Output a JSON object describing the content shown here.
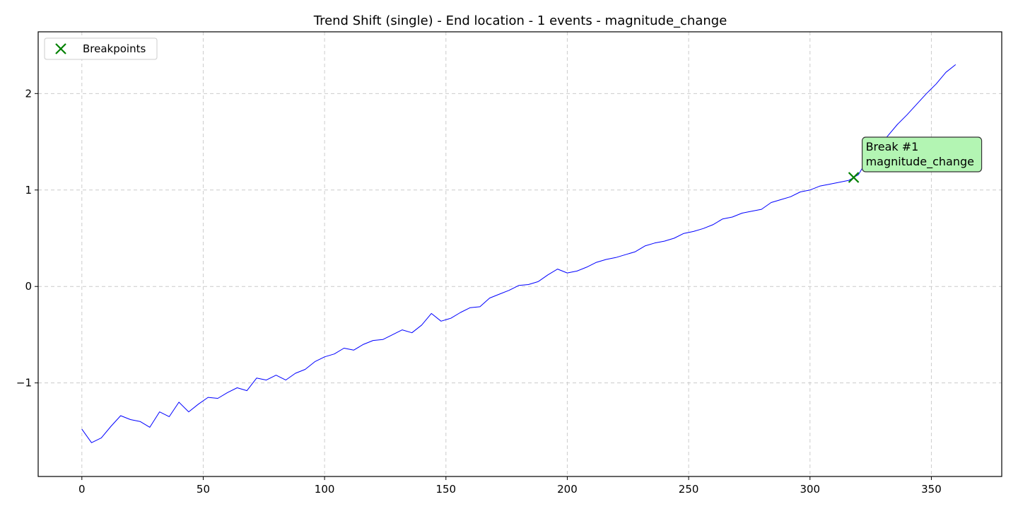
{
  "chart_data": {
    "type": "line",
    "title": "Trend Shift (single) - End location - 1 events - magnitude_change",
    "xlabel": "",
    "ylabel": "",
    "xlim": [
      -18,
      379
    ],
    "ylim": [
      -1.97,
      2.64
    ],
    "x_ticks": [
      0,
      50,
      100,
      150,
      200,
      250,
      300,
      350
    ],
    "y_ticks": [
      -1,
      0,
      1,
      2
    ],
    "grid": true,
    "legend": {
      "placement": "top-left",
      "entries": [
        {
          "label": "Breakpoints",
          "marker": "x",
          "color": "#008000"
        }
      ]
    },
    "series": [
      {
        "color": "#0000ff",
        "x": [
          0,
          4,
          8,
          12,
          16,
          20,
          24,
          28,
          32,
          36,
          40,
          44,
          48,
          52,
          56,
          60,
          64,
          68,
          72,
          76,
          80,
          84,
          88,
          92,
          96,
          100,
          104,
          108,
          112,
          116,
          120,
          124,
          128,
          132,
          136,
          140,
          144,
          148,
          152,
          156,
          160,
          164,
          168,
          172,
          176,
          180,
          184,
          188,
          192,
          196,
          200,
          204,
          208,
          212,
          216,
          220,
          224,
          228,
          232,
          236,
          240,
          244,
          248,
          252,
          256,
          260,
          264,
          268,
          272,
          276,
          280,
          284,
          288,
          292,
          296,
          300,
          304,
          308,
          312,
          316,
          318,
          320,
          324,
          328,
          332,
          336,
          340,
          344,
          348,
          352,
          356,
          360
        ],
        "y": [
          -1.48,
          -1.62,
          -1.57,
          -1.45,
          -1.34,
          -1.38,
          -1.4,
          -1.46,
          -1.3,
          -1.35,
          -1.2,
          -1.3,
          -1.22,
          -1.15,
          -1.16,
          -1.1,
          -1.05,
          -1.08,
          -0.95,
          -0.97,
          -0.92,
          -0.97,
          -0.9,
          -0.86,
          -0.78,
          -0.73,
          -0.7,
          -0.64,
          -0.66,
          -0.6,
          -0.56,
          -0.55,
          -0.5,
          -0.45,
          -0.48,
          -0.4,
          -0.28,
          -0.36,
          -0.33,
          -0.27,
          -0.22,
          -0.21,
          -0.12,
          -0.08,
          -0.04,
          0.01,
          0.02,
          0.05,
          0.12,
          0.18,
          0.14,
          0.16,
          0.2,
          0.25,
          0.28,
          0.3,
          0.33,
          0.36,
          0.42,
          0.45,
          0.47,
          0.5,
          0.55,
          0.57,
          0.6,
          0.64,
          0.7,
          0.72,
          0.76,
          0.78,
          0.8,
          0.87,
          0.9,
          0.93,
          0.98,
          1.0,
          1.04,
          1.06,
          1.08,
          1.1,
          1.13,
          1.16,
          1.33,
          1.45,
          1.56,
          1.68,
          1.78,
          1.89,
          2.0,
          2.1,
          2.22,
          2.3
        ]
      }
    ],
    "breakpoints": [
      {
        "x": 318,
        "y": 1.13,
        "label_line1": "Break #1",
        "label_line2": "magnitude_change"
      }
    ]
  }
}
